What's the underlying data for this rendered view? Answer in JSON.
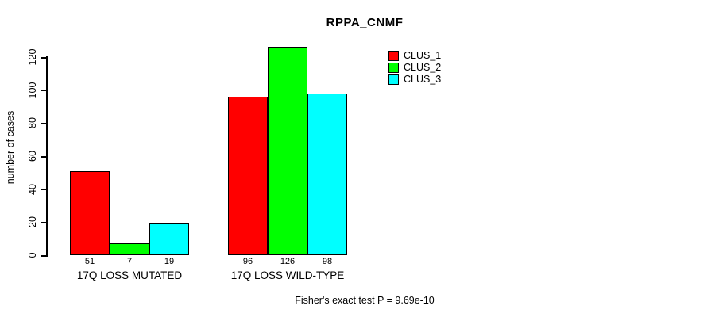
{
  "title": "RPPA_CNMF",
  "footer": {
    "text": "Fisher's exact test P = 9.69e-10"
  },
  "chart_data": {
    "type": "bar",
    "title": "RPPA_CNMF",
    "xlabel": "",
    "ylabel": "number of cases",
    "categories": [
      "17Q LOSS MUTATED",
      "17Q LOSS WILD-TYPE"
    ],
    "series": [
      {
        "name": "CLUS_1",
        "color": "#ff0000",
        "values": [
          51,
          96
        ]
      },
      {
        "name": "CLUS_2",
        "color": "#00ff00",
        "values": [
          7,
          126
        ]
      },
      {
        "name": "CLUS_3",
        "color": "#00ffff",
        "values": [
          19,
          98
        ]
      }
    ],
    "bar_value_labels": [
      [
        "51",
        "7",
        "19"
      ],
      [
        "96",
        "126",
        "98"
      ]
    ],
    "yticks": [
      0,
      20,
      40,
      60,
      80,
      100,
      120
    ],
    "ylim": [
      0,
      130
    ],
    "grid": false,
    "legend_position": "top-right",
    "annotation": "Fisher's exact test P = 9.69e-10"
  }
}
